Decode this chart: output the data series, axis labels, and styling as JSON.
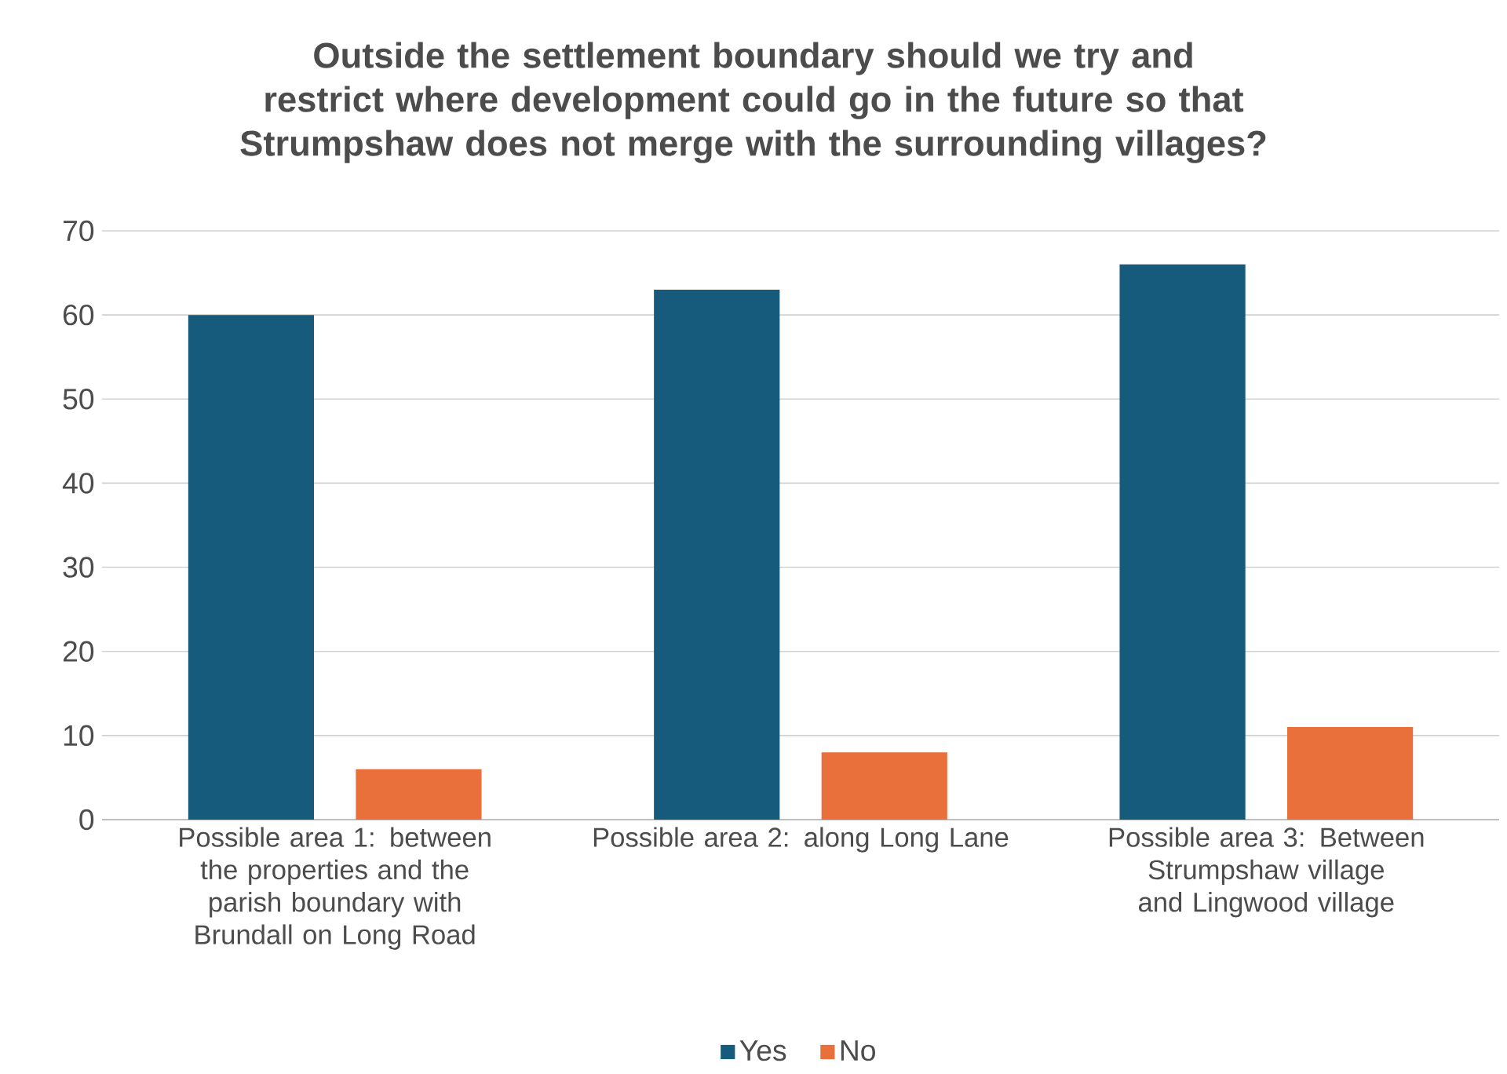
{
  "chart_data": {
    "type": "bar",
    "title": "Outside the settlement boundary should we try and restrict where development could go in the future so that Strumpshaw does not merge with the surrounding villages?",
    "categories": [
      "Possible area 1: between the properties and the parish boundary with Brundall on Long Road",
      "Possible area 2: along Long Lane",
      "Possible area 3: Between Strumpshaw village and Lingwood village"
    ],
    "series": [
      {
        "name": "Yes",
        "color": "#165a7c",
        "values": [
          60,
          63,
          66
        ]
      },
      {
        "name": "No",
        "color": "#e9703a",
        "values": [
          6,
          8,
          11
        ]
      }
    ],
    "ylim": [
      0,
      70
    ],
    "yticks": [
      0,
      10,
      20,
      30,
      40,
      50,
      60,
      70
    ],
    "grid": "y",
    "legend": "bottom"
  }
}
